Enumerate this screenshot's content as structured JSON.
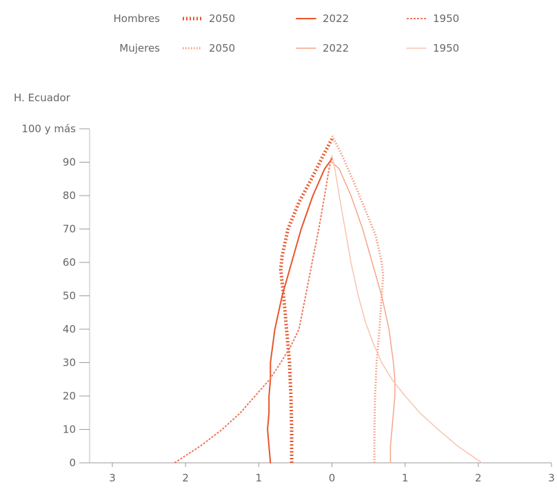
{
  "chart_data": {
    "type": "line",
    "title": "H. Ecuador",
    "legend": {
      "placement": "top",
      "rows": [
        {
          "label": "Hombres",
          "entries": [
            {
              "year": "2050",
              "color": "#e8542a",
              "style": "dotted-thick"
            },
            {
              "year": "2022",
              "color": "#e8542a",
              "style": "solid"
            },
            {
              "year": "1950",
              "color": "#f0765a",
              "style": "dashed"
            }
          ]
        },
        {
          "label": "Mujeres",
          "entries": [
            {
              "year": "2050",
              "color": "#f5967a",
              "style": "dotted"
            },
            {
              "year": "2022",
              "color": "#f5a48a",
              "style": "solid-thin"
            },
            {
              "year": "1950",
              "color": "#f9c2b0",
              "style": "solid-thin"
            }
          ]
        }
      ]
    },
    "x_ticks": [
      -3,
      -2,
      -1,
      0,
      1,
      2,
      3
    ],
    "x_tick_labels": [
      "3",
      "2",
      "1",
      "0",
      "1",
      "2",
      "3"
    ],
    "y_ticks": [
      0,
      10,
      20,
      30,
      40,
      50,
      60,
      70,
      80,
      90,
      100
    ],
    "y_tick_labels": [
      "0",
      "10",
      "20",
      "30",
      "40",
      "50",
      "60",
      "70",
      "80",
      "90",
      "100 y más"
    ],
    "xlim": [
      -3,
      3
    ],
    "ylim": [
      0,
      100
    ],
    "grid": false,
    "series": [
      {
        "sex": "Hombres",
        "year": "2050",
        "color": "#e8542a",
        "style": "dotted-thick",
        "points": [
          [
            -0.55,
            0
          ],
          [
            -0.55,
            10
          ],
          [
            -0.56,
            20
          ],
          [
            -0.58,
            30
          ],
          [
            -0.62,
            40
          ],
          [
            -0.66,
            50
          ],
          [
            -0.7,
            58
          ],
          [
            -0.68,
            62
          ],
          [
            -0.6,
            70
          ],
          [
            -0.45,
            78
          ],
          [
            -0.28,
            85
          ],
          [
            -0.12,
            92
          ],
          [
            0,
            97
          ]
        ]
      },
      {
        "sex": "Hombres",
        "year": "2022",
        "color": "#e8542a",
        "style": "solid",
        "points": [
          [
            -0.84,
            0
          ],
          [
            -0.86,
            5
          ],
          [
            -0.88,
            10
          ],
          [
            -0.86,
            15
          ],
          [
            -0.86,
            20
          ],
          [
            -0.84,
            25
          ],
          [
            -0.84,
            30
          ],
          [
            -0.78,
            40
          ],
          [
            -0.68,
            50
          ],
          [
            -0.55,
            60
          ],
          [
            -0.42,
            70
          ],
          [
            -0.26,
            80
          ],
          [
            -0.1,
            88
          ],
          [
            0,
            91
          ]
        ]
      },
      {
        "sex": "Hombres",
        "year": "1950",
        "color": "#f0765a",
        "style": "dashed",
        "points": [
          [
            -2.15,
            0
          ],
          [
            -1.8,
            5
          ],
          [
            -1.5,
            10
          ],
          [
            -1.25,
            15
          ],
          [
            -1.05,
            20
          ],
          [
            -0.85,
            25
          ],
          [
            -0.7,
            30
          ],
          [
            -0.56,
            35
          ],
          [
            -0.45,
            40
          ],
          [
            -0.36,
            50
          ],
          [
            -0.27,
            60
          ],
          [
            -0.18,
            70
          ],
          [
            -0.1,
            80
          ],
          [
            -0.04,
            88
          ],
          [
            0,
            92
          ]
        ]
      },
      {
        "sex": "Mujeres",
        "year": "2050",
        "color": "#f5967a",
        "style": "dotted",
        "points": [
          [
            0.58,
            0
          ],
          [
            0.58,
            10
          ],
          [
            0.59,
            20
          ],
          [
            0.61,
            30
          ],
          [
            0.65,
            40
          ],
          [
            0.68,
            50
          ],
          [
            0.7,
            56
          ],
          [
            0.68,
            60
          ],
          [
            0.6,
            68
          ],
          [
            0.45,
            76
          ],
          [
            0.3,
            84
          ],
          [
            0.14,
            92
          ],
          [
            0,
            98
          ]
        ]
      },
      {
        "sex": "Mujeres",
        "year": "2022",
        "color": "#f5a48a",
        "style": "solid-thin",
        "points": [
          [
            0.8,
            0
          ],
          [
            0.8,
            5
          ],
          [
            0.82,
            10
          ],
          [
            0.84,
            15
          ],
          [
            0.86,
            20
          ],
          [
            0.86,
            25
          ],
          [
            0.84,
            30
          ],
          [
            0.78,
            40
          ],
          [
            0.68,
            50
          ],
          [
            0.55,
            60
          ],
          [
            0.42,
            70
          ],
          [
            0.26,
            80
          ],
          [
            0.1,
            88
          ],
          [
            0,
            90
          ]
        ]
      },
      {
        "sex": "Mujeres",
        "year": "1950",
        "color": "#f9c2b0",
        "style": "solid-thin",
        "points": [
          [
            2.05,
            0
          ],
          [
            1.72,
            5
          ],
          [
            1.45,
            10
          ],
          [
            1.2,
            15
          ],
          [
            1.0,
            20
          ],
          [
            0.82,
            25
          ],
          [
            0.68,
            30
          ],
          [
            0.56,
            36
          ],
          [
            0.46,
            42
          ],
          [
            0.36,
            50
          ],
          [
            0.26,
            60
          ],
          [
            0.18,
            70
          ],
          [
            0.1,
            80
          ],
          [
            0.04,
            88
          ],
          [
            0,
            92
          ]
        ]
      }
    ]
  }
}
